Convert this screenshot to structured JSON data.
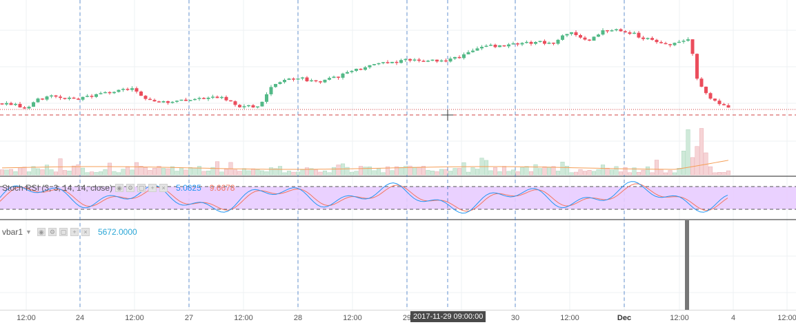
{
  "colors": {
    "up": "#53b987",
    "down": "#eb4d5c",
    "vol_up": "#cfe9d9",
    "vol_down": "#f6d4d6",
    "vol_ma": "#f59d54",
    "k_line": "#2196f3",
    "d_line": "#f4755e",
    "rsi_band": "#e8ccff",
    "grid": "#eef0f3",
    "session": "#3d78c5",
    "vbar": "#777777"
  },
  "rsi_legend": {
    "title": "Stoch RSI (3, 3, 14, 14, close)",
    "k_value": "5.0825",
    "d_value": "9.6678",
    "buttons": [
      "eye-icon",
      "gear-icon",
      "square-icon",
      "plus-icon",
      "close-icon"
    ]
  },
  "vbar_legend": {
    "title": "vbar1",
    "value": "5672.0000",
    "buttons": [
      "eye-icon",
      "gear-icon",
      "square-icon",
      "plus-icon",
      "close-icon"
    ]
  },
  "time_axis": {
    "ticks": [
      "12:00",
      "24",
      "12:00",
      "27",
      "12:00",
      "28",
      "12:00",
      "29",
      "12:00",
      "30",
      "12:00",
      "Dec",
      "12:00",
      "4",
      "12:00"
    ],
    "bold_ticks": [
      "Dec"
    ],
    "crosshair_label": "2017-11-29 09:00:00"
  },
  "chart_data": {
    "type": "candlestick",
    "panes": [
      "price",
      "volume",
      "stoch_rsi",
      "vbar1"
    ],
    "stoch_rsi": {
      "k": 5.0825,
      "d": 9.6678,
      "upper_band": 80,
      "lower_band": 20
    },
    "vbar1": {
      "value": 5672.0
    }
  }
}
